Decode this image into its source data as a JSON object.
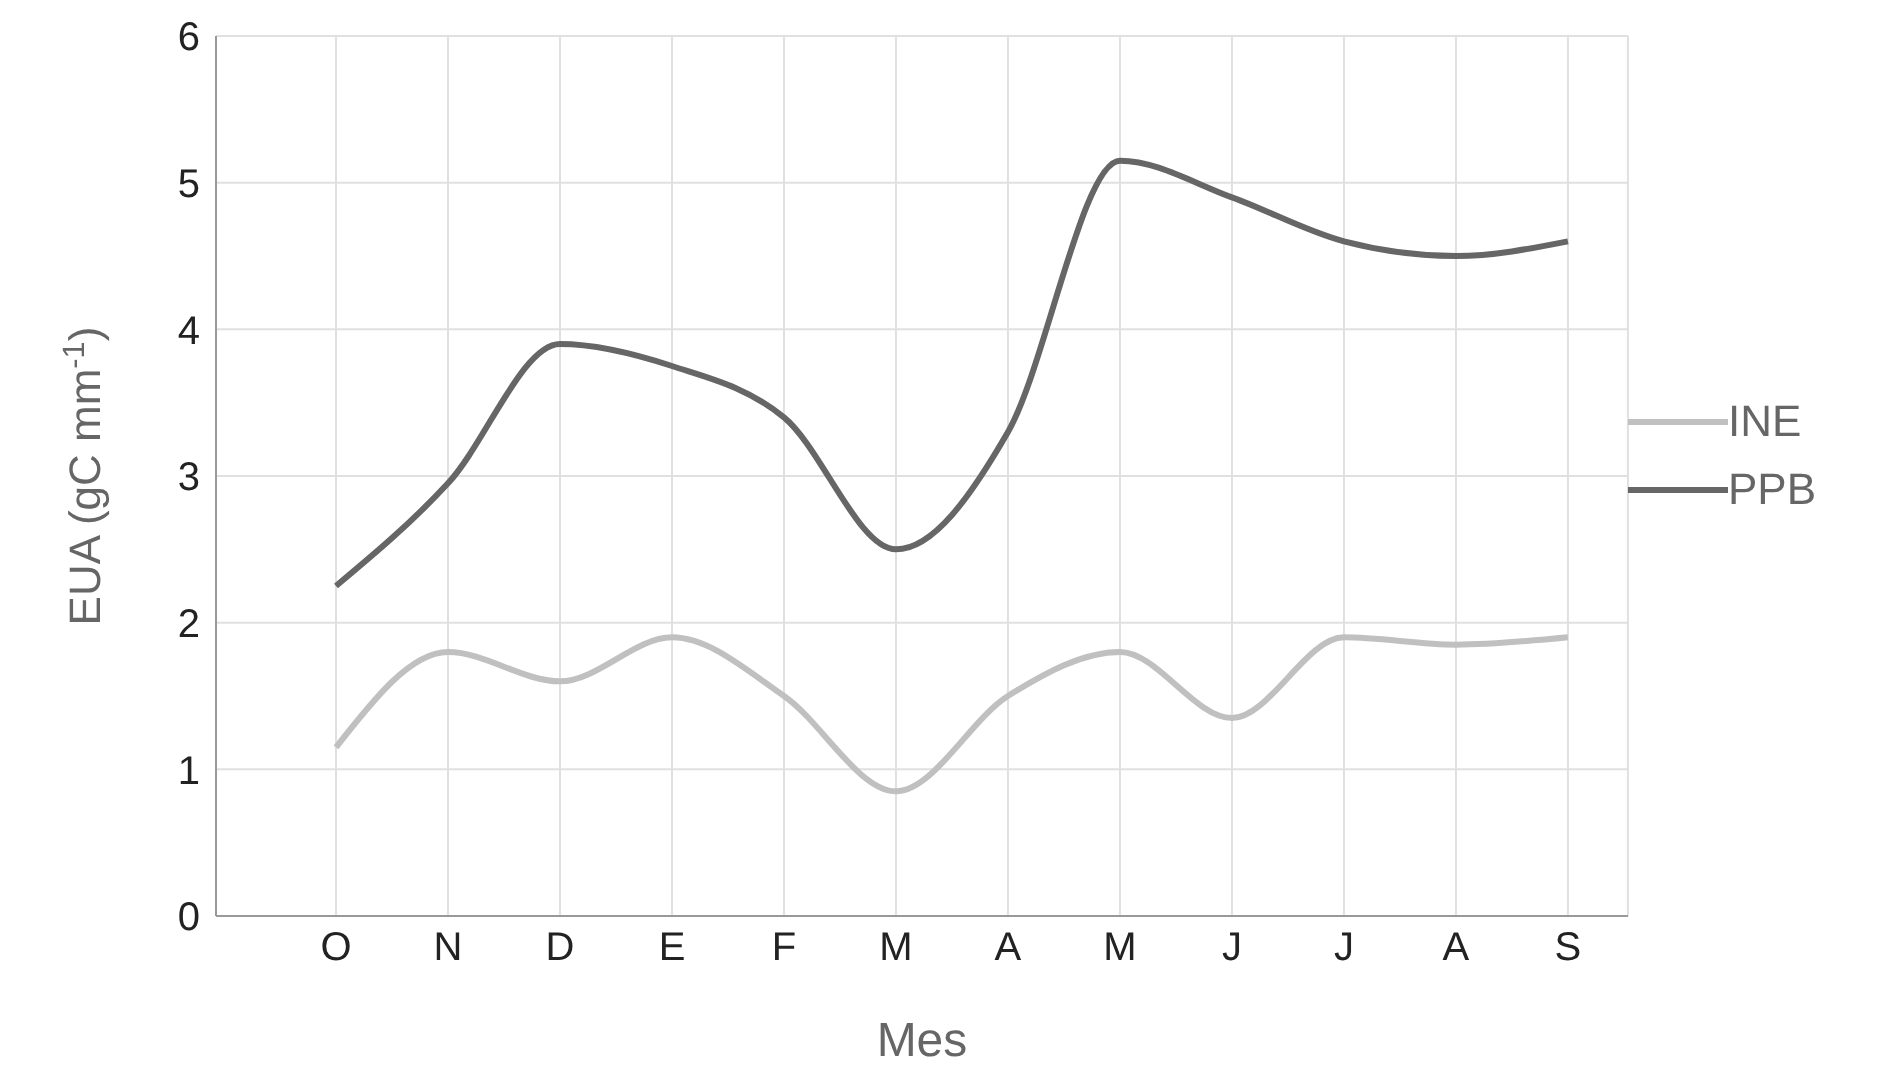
{
  "chart_data": {
    "type": "line",
    "xlabel": "Mes",
    "ylabel": "EUA (gC mm$^{-1}$)",
    "categories": [
      "O",
      "N",
      "D",
      "E",
      "F",
      "M",
      "A",
      "M",
      "J",
      "J",
      "A",
      "S"
    ],
    "series": [
      {
        "name": "INE",
        "color": "#c0c0c0",
        "values": [
          1.15,
          1.8,
          1.6,
          1.9,
          1.5,
          0.85,
          1.5,
          1.8,
          1.35,
          1.9,
          1.85,
          1.9
        ]
      },
      {
        "name": "PPB",
        "color": "#666666",
        "values": [
          2.25,
          2.95,
          3.9,
          3.75,
          3.4,
          2.5,
          3.3,
          5.15,
          4.9,
          4.6,
          4.5,
          4.6
        ]
      }
    ],
    "ylim": [
      0,
      6
    ],
    "yticks": [
      0,
      1,
      2,
      3,
      4,
      5,
      6
    ],
    "grid": true,
    "legend": "right",
    "marker": "none",
    "line_style": "solid"
  }
}
